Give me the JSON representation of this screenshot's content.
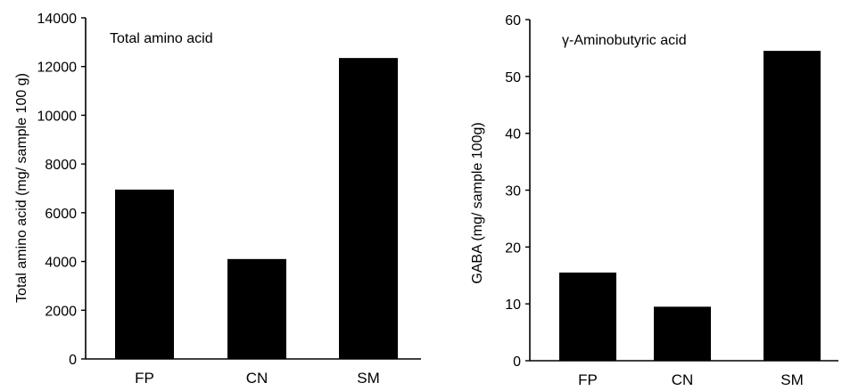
{
  "chart_data": [
    {
      "type": "bar",
      "title": "Total amino acid",
      "xlabel": "",
      "ylabel": "Total amino acid (mg/ sample 100 g)",
      "categories": [
        "FP",
        "CN",
        "SM"
      ],
      "values": [
        6950,
        4100,
        12350
      ],
      "ylim": [
        0,
        14000
      ],
      "yticks": [
        0,
        2000,
        4000,
        6000,
        8000,
        10000,
        12000,
        14000
      ],
      "grid": false,
      "bar_color": "#000000"
    },
    {
      "type": "bar",
      "title": "γ-Aminobutyric acid",
      "xlabel": "",
      "ylabel": "GABA (mg/ sample 100g)",
      "categories": [
        "FP",
        "CN",
        "SM"
      ],
      "values": [
        15.5,
        9.5,
        54.5
      ],
      "ylim": [
        0,
        60
      ],
      "yticks": [
        0,
        10,
        20,
        30,
        40,
        50,
        60
      ],
      "grid": false,
      "bar_color": "#000000"
    }
  ]
}
